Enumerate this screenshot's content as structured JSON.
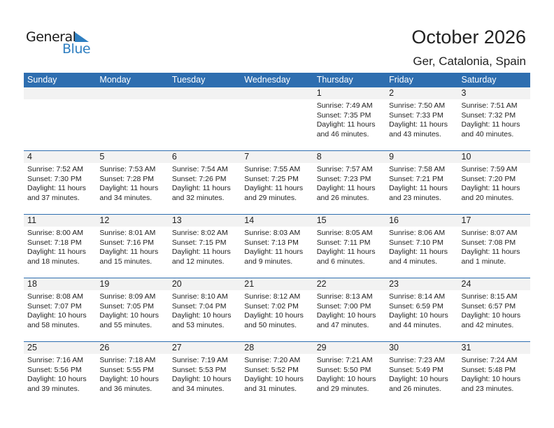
{
  "logo": {
    "text_general": "General",
    "text_blue": "Blue"
  },
  "header": {
    "title": "October 2026",
    "location": "Ger, Catalonia, Spain"
  },
  "colors": {
    "accent": "#2e6eb0",
    "date_strip": "#f2f2f2"
  },
  "weekdays": [
    "Sunday",
    "Monday",
    "Tuesday",
    "Wednesday",
    "Thursday",
    "Friday",
    "Saturday"
  ],
  "weeks": [
    [
      null,
      null,
      null,
      null,
      {
        "day": "1",
        "sunrise": "Sunrise: 7:49 AM",
        "sunset": "Sunset: 7:35 PM",
        "daylight1": "Daylight: 11 hours",
        "daylight2": "and 46 minutes."
      },
      {
        "day": "2",
        "sunrise": "Sunrise: 7:50 AM",
        "sunset": "Sunset: 7:33 PM",
        "daylight1": "Daylight: 11 hours",
        "daylight2": "and 43 minutes."
      },
      {
        "day": "3",
        "sunrise": "Sunrise: 7:51 AM",
        "sunset": "Sunset: 7:32 PM",
        "daylight1": "Daylight: 11 hours",
        "daylight2": "and 40 minutes."
      }
    ],
    [
      {
        "day": "4",
        "sunrise": "Sunrise: 7:52 AM",
        "sunset": "Sunset: 7:30 PM",
        "daylight1": "Daylight: 11 hours",
        "daylight2": "and 37 minutes."
      },
      {
        "day": "5",
        "sunrise": "Sunrise: 7:53 AM",
        "sunset": "Sunset: 7:28 PM",
        "daylight1": "Daylight: 11 hours",
        "daylight2": "and 34 minutes."
      },
      {
        "day": "6",
        "sunrise": "Sunrise: 7:54 AM",
        "sunset": "Sunset: 7:26 PM",
        "daylight1": "Daylight: 11 hours",
        "daylight2": "and 32 minutes."
      },
      {
        "day": "7",
        "sunrise": "Sunrise: 7:55 AM",
        "sunset": "Sunset: 7:25 PM",
        "daylight1": "Daylight: 11 hours",
        "daylight2": "and 29 minutes."
      },
      {
        "day": "8",
        "sunrise": "Sunrise: 7:57 AM",
        "sunset": "Sunset: 7:23 PM",
        "daylight1": "Daylight: 11 hours",
        "daylight2": "and 26 minutes."
      },
      {
        "day": "9",
        "sunrise": "Sunrise: 7:58 AM",
        "sunset": "Sunset: 7:21 PM",
        "daylight1": "Daylight: 11 hours",
        "daylight2": "and 23 minutes."
      },
      {
        "day": "10",
        "sunrise": "Sunrise: 7:59 AM",
        "sunset": "Sunset: 7:20 PM",
        "daylight1": "Daylight: 11 hours",
        "daylight2": "and 20 minutes."
      }
    ],
    [
      {
        "day": "11",
        "sunrise": "Sunrise: 8:00 AM",
        "sunset": "Sunset: 7:18 PM",
        "daylight1": "Daylight: 11 hours",
        "daylight2": "and 18 minutes."
      },
      {
        "day": "12",
        "sunrise": "Sunrise: 8:01 AM",
        "sunset": "Sunset: 7:16 PM",
        "daylight1": "Daylight: 11 hours",
        "daylight2": "and 15 minutes."
      },
      {
        "day": "13",
        "sunrise": "Sunrise: 8:02 AM",
        "sunset": "Sunset: 7:15 PM",
        "daylight1": "Daylight: 11 hours",
        "daylight2": "and 12 minutes."
      },
      {
        "day": "14",
        "sunrise": "Sunrise: 8:03 AM",
        "sunset": "Sunset: 7:13 PM",
        "daylight1": "Daylight: 11 hours",
        "daylight2": "and 9 minutes."
      },
      {
        "day": "15",
        "sunrise": "Sunrise: 8:05 AM",
        "sunset": "Sunset: 7:11 PM",
        "daylight1": "Daylight: 11 hours",
        "daylight2": "and 6 minutes."
      },
      {
        "day": "16",
        "sunrise": "Sunrise: 8:06 AM",
        "sunset": "Sunset: 7:10 PM",
        "daylight1": "Daylight: 11 hours",
        "daylight2": "and 4 minutes."
      },
      {
        "day": "17",
        "sunrise": "Sunrise: 8:07 AM",
        "sunset": "Sunset: 7:08 PM",
        "daylight1": "Daylight: 11 hours",
        "daylight2": "and 1 minute."
      }
    ],
    [
      {
        "day": "18",
        "sunrise": "Sunrise: 8:08 AM",
        "sunset": "Sunset: 7:07 PM",
        "daylight1": "Daylight: 10 hours",
        "daylight2": "and 58 minutes."
      },
      {
        "day": "19",
        "sunrise": "Sunrise: 8:09 AM",
        "sunset": "Sunset: 7:05 PM",
        "daylight1": "Daylight: 10 hours",
        "daylight2": "and 55 minutes."
      },
      {
        "day": "20",
        "sunrise": "Sunrise: 8:10 AM",
        "sunset": "Sunset: 7:04 PM",
        "daylight1": "Daylight: 10 hours",
        "daylight2": "and 53 minutes."
      },
      {
        "day": "21",
        "sunrise": "Sunrise: 8:12 AM",
        "sunset": "Sunset: 7:02 PM",
        "daylight1": "Daylight: 10 hours",
        "daylight2": "and 50 minutes."
      },
      {
        "day": "22",
        "sunrise": "Sunrise: 8:13 AM",
        "sunset": "Sunset: 7:00 PM",
        "daylight1": "Daylight: 10 hours",
        "daylight2": "and 47 minutes."
      },
      {
        "day": "23",
        "sunrise": "Sunrise: 8:14 AM",
        "sunset": "Sunset: 6:59 PM",
        "daylight1": "Daylight: 10 hours",
        "daylight2": "and 44 minutes."
      },
      {
        "day": "24",
        "sunrise": "Sunrise: 8:15 AM",
        "sunset": "Sunset: 6:57 PM",
        "daylight1": "Daylight: 10 hours",
        "daylight2": "and 42 minutes."
      }
    ],
    [
      {
        "day": "25",
        "sunrise": "Sunrise: 7:16 AM",
        "sunset": "Sunset: 5:56 PM",
        "daylight1": "Daylight: 10 hours",
        "daylight2": "and 39 minutes."
      },
      {
        "day": "26",
        "sunrise": "Sunrise: 7:18 AM",
        "sunset": "Sunset: 5:55 PM",
        "daylight1": "Daylight: 10 hours",
        "daylight2": "and 36 minutes."
      },
      {
        "day": "27",
        "sunrise": "Sunrise: 7:19 AM",
        "sunset": "Sunset: 5:53 PM",
        "daylight1": "Daylight: 10 hours",
        "daylight2": "and 34 minutes."
      },
      {
        "day": "28",
        "sunrise": "Sunrise: 7:20 AM",
        "sunset": "Sunset: 5:52 PM",
        "daylight1": "Daylight: 10 hours",
        "daylight2": "and 31 minutes."
      },
      {
        "day": "29",
        "sunrise": "Sunrise: 7:21 AM",
        "sunset": "Sunset: 5:50 PM",
        "daylight1": "Daylight: 10 hours",
        "daylight2": "and 29 minutes."
      },
      {
        "day": "30",
        "sunrise": "Sunrise: 7:23 AM",
        "sunset": "Sunset: 5:49 PM",
        "daylight1": "Daylight: 10 hours",
        "daylight2": "and 26 minutes."
      },
      {
        "day": "31",
        "sunrise": "Sunrise: 7:24 AM",
        "sunset": "Sunset: 5:48 PM",
        "daylight1": "Daylight: 10 hours",
        "daylight2": "and 23 minutes."
      }
    ]
  ]
}
